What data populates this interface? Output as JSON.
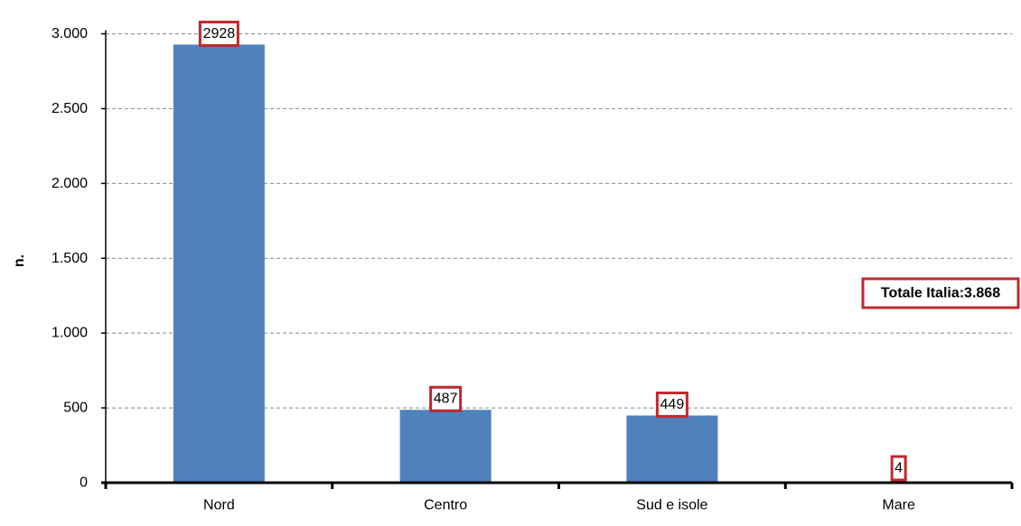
{
  "chart_data": {
    "type": "bar",
    "categories": [
      "Nord",
      "Centro",
      "Sud e isole",
      "Mare"
    ],
    "values": [
      2928,
      487,
      449,
      4
    ],
    "data_labels": [
      "2928",
      "487",
      "449",
      "4"
    ],
    "title": "",
    "xlabel": "",
    "ylabel": "n.",
    "ylim": [
      0,
      3000
    ],
    "yticks": [
      0,
      500,
      1000,
      1500,
      2000,
      2500,
      3000
    ],
    "ytick_labels": [
      "0",
      "500",
      "1.000",
      "1.500",
      "2.000",
      "2.500",
      "3.000"
    ],
    "grid": "horizontal dashed",
    "legend": "none",
    "annotation": "Totale Italia:3.868",
    "colors": {
      "bar": "#4f81bd",
      "label_border": "#c0282d",
      "grid": "#888888",
      "axis": "#000000"
    }
  }
}
